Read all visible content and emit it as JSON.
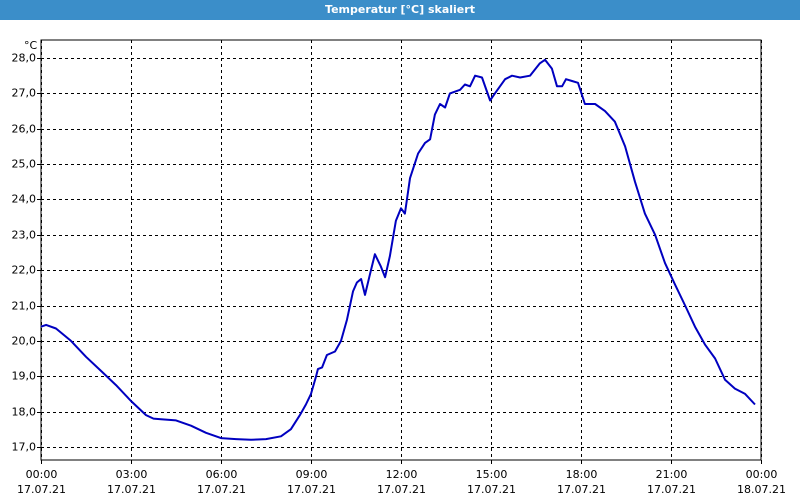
{
  "chart_data": {
    "type": "line",
    "title": "Temperatur [°C] skaliert",
    "y_unit": "°C",
    "xlim": [
      0,
      24
    ],
    "ylim": [
      16.63,
      28.51
    ],
    "xticks": [
      {
        "value": 0,
        "label": "00:00"
      },
      {
        "value": 3,
        "label": "03:00"
      },
      {
        "value": 6,
        "label": "06:00"
      },
      {
        "value": 9,
        "label": "09:00"
      },
      {
        "value": 12,
        "label": "12:00"
      },
      {
        "value": 15,
        "label": "15:00"
      },
      {
        "value": 18,
        "label": "18:00"
      },
      {
        "value": 21,
        "label": "21:00"
      },
      {
        "value": 24,
        "label": "00:00"
      }
    ],
    "xtick_dates": [
      "17.07.21",
      "17.07.21",
      "17.07.21",
      "17.07.21",
      "17.07.21",
      "17.07.21",
      "17.07.21",
      "17.07.21",
      "18.07.21"
    ],
    "yticks": [
      {
        "value": 17,
        "label": "17,0"
      },
      {
        "value": 18,
        "label": "18,0"
      },
      {
        "value": 19,
        "label": "19,0"
      },
      {
        "value": 20,
        "label": "20,0"
      },
      {
        "value": 21,
        "label": "21,0"
      },
      {
        "value": 22,
        "label": "22,0"
      },
      {
        "value": 23,
        "label": "23,0"
      },
      {
        "value": 24,
        "label": "24,0"
      },
      {
        "value": 25,
        "label": "25,0"
      },
      {
        "value": 26,
        "label": "26,0"
      },
      {
        "value": 27,
        "label": "27,0"
      },
      {
        "value": 28,
        "label": "28,0"
      }
    ],
    "grid": true,
    "x": [
      0,
      0.17,
      0.5,
      1,
      1.5,
      2,
      2.5,
      3,
      3.5,
      3.75,
      4,
      4.5,
      5,
      5.5,
      6,
      6.5,
      7,
      7.5,
      8,
      8.33,
      8.63,
      8.83,
      9,
      9.17,
      9.23,
      9.37,
      9.53,
      9.8,
      10,
      10.2,
      10.4,
      10.53,
      10.67,
      10.8,
      10.97,
      11.13,
      11.33,
      11.47,
      11.63,
      11.83,
      12,
      12.13,
      12.3,
      12.57,
      12.8,
      12.97,
      13.13,
      13.3,
      13.47,
      13.63,
      13.97,
      14.13,
      14.3,
      14.47,
      14.7,
      14.97,
      15.13,
      15.47,
      15.7,
      15.97,
      16.3,
      16.63,
      16.8,
      17.03,
      17.2,
      17.37,
      17.5,
      17.7,
      17.9,
      18.13,
      18.47,
      18.8,
      19.13,
      19.47,
      19.8,
      20.13,
      20.47,
      20.8,
      21.13,
      21.47,
      21.8,
      22.13,
      22.47,
      22.8,
      23.13,
      23.47,
      23.8
    ],
    "series": [
      {
        "name": "Temperatur",
        "color": "#0000c0",
        "values": [
          20.4,
          20.45,
          20.35,
          20.0,
          19.55,
          19.15,
          18.75,
          18.3,
          17.9,
          17.8,
          17.78,
          17.75,
          17.6,
          17.4,
          17.25,
          17.22,
          17.2,
          17.22,
          17.3,
          17.5,
          17.9,
          18.2,
          18.5,
          19.0,
          19.2,
          19.25,
          19.6,
          19.7,
          20.0,
          20.6,
          21.4,
          21.65,
          21.75,
          21.3,
          21.9,
          22.45,
          22.1,
          21.8,
          22.4,
          23.4,
          23.75,
          23.6,
          24.6,
          25.3,
          25.6,
          25.7,
          26.4,
          26.7,
          26.6,
          27.0,
          27.1,
          27.25,
          27.2,
          27.5,
          27.45,
          26.8,
          27.0,
          27.4,
          27.5,
          27.45,
          27.5,
          27.85,
          27.95,
          27.7,
          27.2,
          27.2,
          27.4,
          27.35,
          27.3,
          26.7,
          26.7,
          26.5,
          26.2,
          25.5,
          24.5,
          23.6,
          23.0,
          22.2,
          21.6,
          21.0,
          20.4,
          19.9,
          19.5,
          18.9,
          18.65,
          18.5,
          18.2
        ]
      }
    ]
  }
}
